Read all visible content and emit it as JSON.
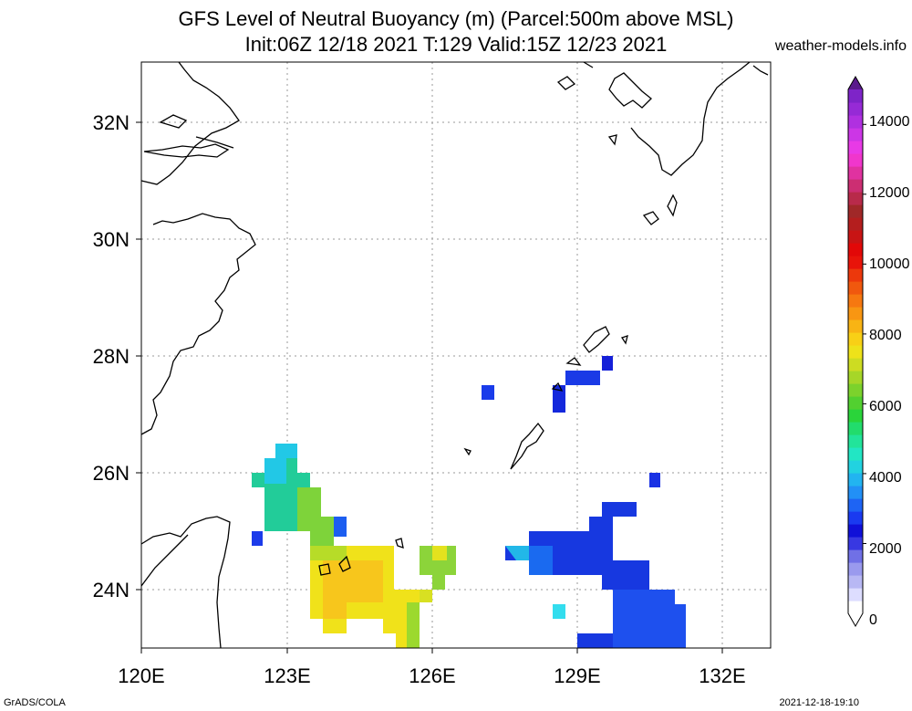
{
  "title": {
    "line1": "GFS Level of Neutral Buoyancy (m) (Parcel:500m above MSL)",
    "line2": "Init:06Z 12/18 2021 T:129 Valid:15Z 12/23 2021"
  },
  "site": "weather-models.info",
  "footer": {
    "left": "GrADS/COLA",
    "right": "2021-12-18-19:10"
  },
  "map": {
    "lon_range": [
      120,
      133
    ],
    "lat_range": [
      23,
      33
    ],
    "lon_ticks": [
      120,
      123,
      126,
      129,
      132
    ],
    "lat_ticks": [
      24,
      26,
      28,
      30,
      32
    ],
    "lon_labels": [
      "120E",
      "123E",
      "126E",
      "129E",
      "132E"
    ],
    "lat_labels": [
      "24N",
      "26N",
      "28N",
      "30N",
      "32N"
    ],
    "gridlines": true
  },
  "colorbar": {
    "labels": [
      "0",
      "2000",
      "4000",
      "6000",
      "8000",
      "10000",
      "12000",
      "14000"
    ],
    "min": 0,
    "max": 15000
  }
}
